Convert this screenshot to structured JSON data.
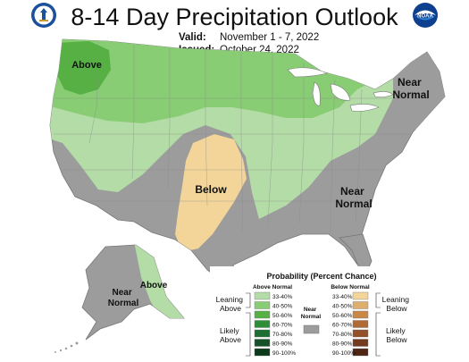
{
  "header": {
    "title": "8-14 Day Precipitation Outlook",
    "valid_label": "Valid:",
    "valid_value": "November 1 - 7, 2022",
    "issued_label": "Issued:",
    "issued_value": "October 24, 2022",
    "left_logo": "doc-seal-icon",
    "right_logo": "noaa-logo-icon",
    "right_logo_text": "NOAA"
  },
  "map": {
    "labels": {
      "above_nw": "Above",
      "near_normal_ne": "Near\nNormal",
      "below_sw": "Below",
      "near_normal_se": "Near\nNormal",
      "near_normal_ak": "Near\nNormal",
      "above_ak": "Above"
    },
    "colors": {
      "near_normal": "#9c9c9c",
      "above_33_40": "#b3dca6",
      "above_40_50": "#88cc74",
      "above_50_60": "#56b044",
      "below_33_40": "#f3d59a",
      "background": "#ffffff",
      "lakes": "#ffffff"
    }
  },
  "legend": {
    "title": "Probability (Percent Chance)",
    "above_header": "Above Normal",
    "below_header": "Below Normal",
    "near_header": "Near\nNormal",
    "left_groups": [
      "Leaning\nAbove",
      "Likely\nAbove"
    ],
    "right_groups": [
      "Leaning\nBelow",
      "Likely\nBelow"
    ],
    "above_rows": [
      {
        "label": "33-40%",
        "color": "#b3dca6"
      },
      {
        "label": "40-50%",
        "color": "#88cc74"
      },
      {
        "label": "50-60%",
        "color": "#56b044"
      },
      {
        "label": "60-70%",
        "color": "#2e8e38"
      },
      {
        "label": "70-80%",
        "color": "#1f6f32"
      },
      {
        "label": "80-90%",
        "color": "#155227"
      },
      {
        "label": "90-100%",
        "color": "#0c3a1a"
      }
    ],
    "below_rows": [
      {
        "label": "33-40%",
        "color": "#f3d59a"
      },
      {
        "label": "40-50%",
        "color": "#ddae6c"
      },
      {
        "label": "50-60%",
        "color": "#c98748"
      },
      {
        "label": "60-70%",
        "color": "#b06a35"
      },
      {
        "label": "70-80%",
        "color": "#934f28"
      },
      {
        "label": "80-90%",
        "color": "#733a1f"
      },
      {
        "label": "90-100%",
        "color": "#4f2614"
      }
    ],
    "near_color": "#9c9c9c"
  }
}
